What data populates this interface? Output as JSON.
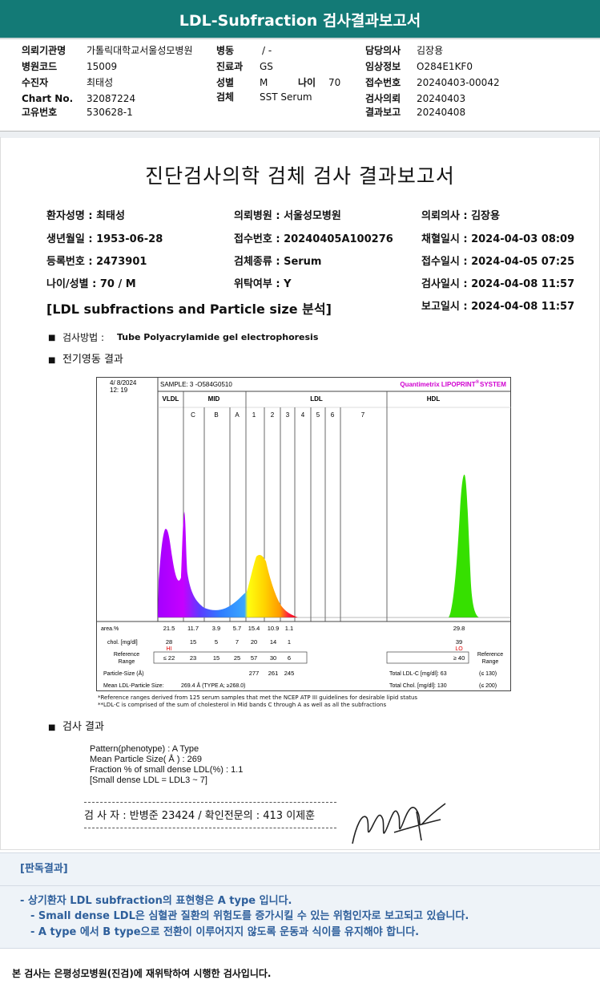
{
  "header": {
    "title": "LDL-Subfraction 검사결과보고서"
  },
  "info": {
    "rows": [
      [
        {
          "label": "의뢰기관명",
          "value": "가톨릭대학교서울성모병원"
        },
        {
          "label": "병동",
          "value": "/ -"
        },
        {
          "label": "담당의사",
          "value": "김장용"
        }
      ],
      [
        {
          "label": "병원코드",
          "value": "15009"
        },
        {
          "label": "진료과",
          "value": "GS"
        },
        {
          "label": "임상정보",
          "value": "O284E1KF0"
        }
      ],
      [
        {
          "label": "수진자",
          "value": "최태성"
        },
        {
          "label": "성별",
          "value": "M"
        },
        {
          "label": "나이",
          "value": "70"
        },
        {
          "label": "접수번호",
          "value": "20240403-00042"
        }
      ],
      [
        {
          "label": "Chart No.",
          "value": "32087224"
        },
        {
          "label": "검체",
          "value": "SST Serum"
        },
        {
          "label": "검사의뢰",
          "value": "20240403"
        }
      ],
      [
        {
          "label": "고유번호",
          "value": "530628-1"
        },
        {
          "label": "결과보고",
          "value": "20240408"
        }
      ]
    ]
  },
  "report": {
    "title": "진단검사의학 검체 검사 결과보고서",
    "left": [
      "환자성명 : 최태성",
      "생년월일 : 1953-06-28",
      "등록번호 : 2473901",
      "나이/성별 : 70 / M"
    ],
    "middle": [
      "의뢰병원 : 서울성모병원",
      "접수번호 : 20240405A100276",
      "검체종류 : Serum",
      "위탁여부 : Y"
    ],
    "right": [
      "의뢰의사 : 김장용",
      "채혈일시 : 2024-04-03 08:09",
      "접수일시 : 2024-04-05 07:25",
      "검사일시 : 2024-04-08 11:57",
      "보고일시 : 2024-04-08 11:57"
    ],
    "section": "[LDL subfractions and Particle size 분석]",
    "method_label": "검사방법 :",
    "method": "Tube Polyacrylamide gel electrophoresis",
    "electrophoresis": "전기영동 결과",
    "results_heading": "검사 결과"
  },
  "chart": {
    "date": "4/ 8/2024",
    "time": "12: 19",
    "sample": "SAMPLE:   3 -O584G0510",
    "brand": "Quantimetrix LIPOPRINT",
    "reg": "®",
    "system": " SYSTEM",
    "groups": [
      "VLDL",
      "MID",
      "LDL",
      "HDL"
    ],
    "bands": [
      "C",
      "B",
      "A",
      "1",
      "2",
      "3",
      "4",
      "5",
      "6",
      "7"
    ],
    "row_labels": {
      "area": "area.%",
      "chol": "chol. [mg/dl]",
      "reference": [
        "Reference",
        "Range"
      ],
      "particle": "Particle-Size (Å)",
      "mean": "Mean LDL-Particle Size:"
    },
    "columns": [
      {
        "area": 21.5,
        "chol": 28,
        "flag": "HI",
        "reference": "≤ 22"
      },
      {
        "area": 11.7,
        "chol": 15,
        "reference": "23"
      },
      {
        "area": 3.9,
        "chol": 5,
        "reference": "15"
      },
      {
        "area": 5.7,
        "chol": 7,
        "reference": "25"
      },
      {
        "area": 15.4,
        "chol": 20,
        "reference": "57",
        "particle": 277
      },
      {
        "area": 10.9,
        "chol": 14,
        "reference": "30",
        "particle": 261
      },
      {
        "area": 1.1,
        "chol": 1,
        "reference": "6",
        "particle": 245
      },
      {
        "area": 29.8,
        "chol": 39,
        "flag": "LO",
        "reference": "≥ 40"
      }
    ],
    "mean_value": "269.4 Å   (TYPE A; ≥268.0)",
    "total_ldl_label": "Total LDL-C [mg/dl]: 63",
    "total_ldl_ref": "(≤ 130)",
    "total_chol_label": "Total Chol. [mg/dl]:  130",
    "total_chol_ref": "(≤ 200)",
    "notes": [
      "*Reference ranges derived from 125 serum samples that met the NCEP ATP III guidelines for desirable lipid status",
      "**LDL-C is comprised of the sum of cholesterol in Mid bands C through A as well as all the subfractions"
    ]
  },
  "results": [
    "Pattern(phenotype) : A Type",
    "Mean Particle Size( Å ) : 269",
    "Fraction % of small dense LDL(%) : 1.1",
    "[Small dense LDL = LDL3 ~ 7]"
  ],
  "signature": "검 사 자 : 반병준  23424  /  확인전문의 : 413  이제훈",
  "interpretation": {
    "heading": "[판독결과]",
    "lines": [
      "- 상기환자 LDL subfraction의 표현형은 A type 입니다.",
      "-  Small dense LDL은 심혈관 질환의 위험도를 증가시킬 수 있는 위험인자로 보고되고 있습니다.",
      "-  A type 에서 B type으로 전환이 이루어지지 않도록 운동과 식이를 유지해야 합니다."
    ]
  },
  "footer": "본 검사는 은평성모병원(진검)에 재위탁하여 시행한 검사입니다."
}
